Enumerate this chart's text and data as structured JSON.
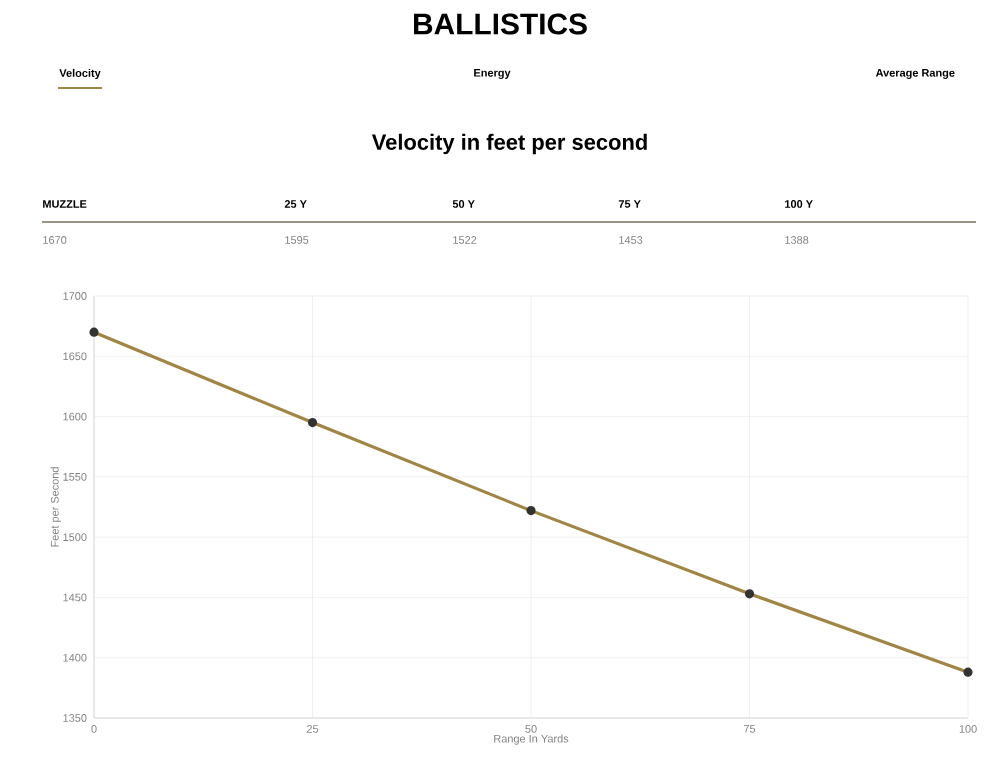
{
  "chart_data": {
    "type": "line",
    "title": "BALLISTICS",
    "subtitle": "Velocity in feet per second",
    "annotations": [
      "Velocity",
      "Energy",
      "Average Range",
      "MUZZLE",
      "25 Y",
      "50 Y",
      "75 Y",
      "100 Y",
      "1670",
      "1595",
      "1522",
      "1453",
      "1388"
    ],
    "x": [
      0,
      25,
      50,
      75,
      100
    ],
    "series": [
      {
        "color": "#a08545",
        "values": [
          1670,
          1595,
          1522,
          1453,
          1388
        ]
      }
    ],
    "xlabel": "Range In Yards",
    "ylabel": "Feet per Second",
    "xlim": [
      0,
      100
    ],
    "xticks": [
      0,
      25,
      50,
      75,
      100
    ],
    "ylim": [
      1350,
      1700
    ],
    "yticks": [
      1350,
      1400,
      1450,
      1500,
      1550,
      1600,
      1650,
      1700
    ],
    "grid": true,
    "marker": "circle",
    "line_style": "solid"
  }
}
